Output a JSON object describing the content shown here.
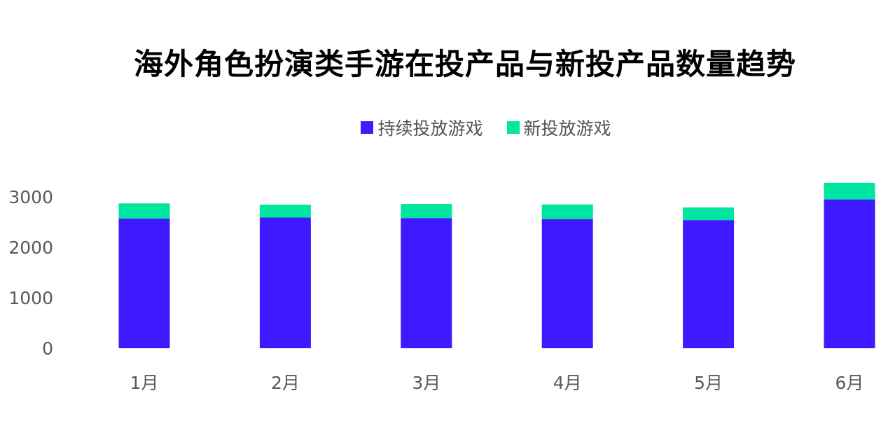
{
  "chart_data": {
    "type": "bar",
    "stacked": true,
    "title": "海外角色扮演类手游在投产品与新投产品数量趋势",
    "categories": [
      "1月",
      "2月",
      "3月",
      "4月",
      "5月",
      "6月"
    ],
    "series": [
      {
        "name": "持续投放游戏",
        "color": "#3D1AFF",
        "values": [
          2570,
          2590,
          2580,
          2560,
          2540,
          2950
        ]
      },
      {
        "name": "新投放游戏",
        "color": "#00E5A0",
        "values": [
          300,
          255,
          280,
          290,
          250,
          330
        ]
      }
    ],
    "yticks": [
      0,
      1000,
      2000,
      3000
    ],
    "ylim": [
      0,
      3000
    ],
    "grid": false,
    "legend_position": "top"
  }
}
